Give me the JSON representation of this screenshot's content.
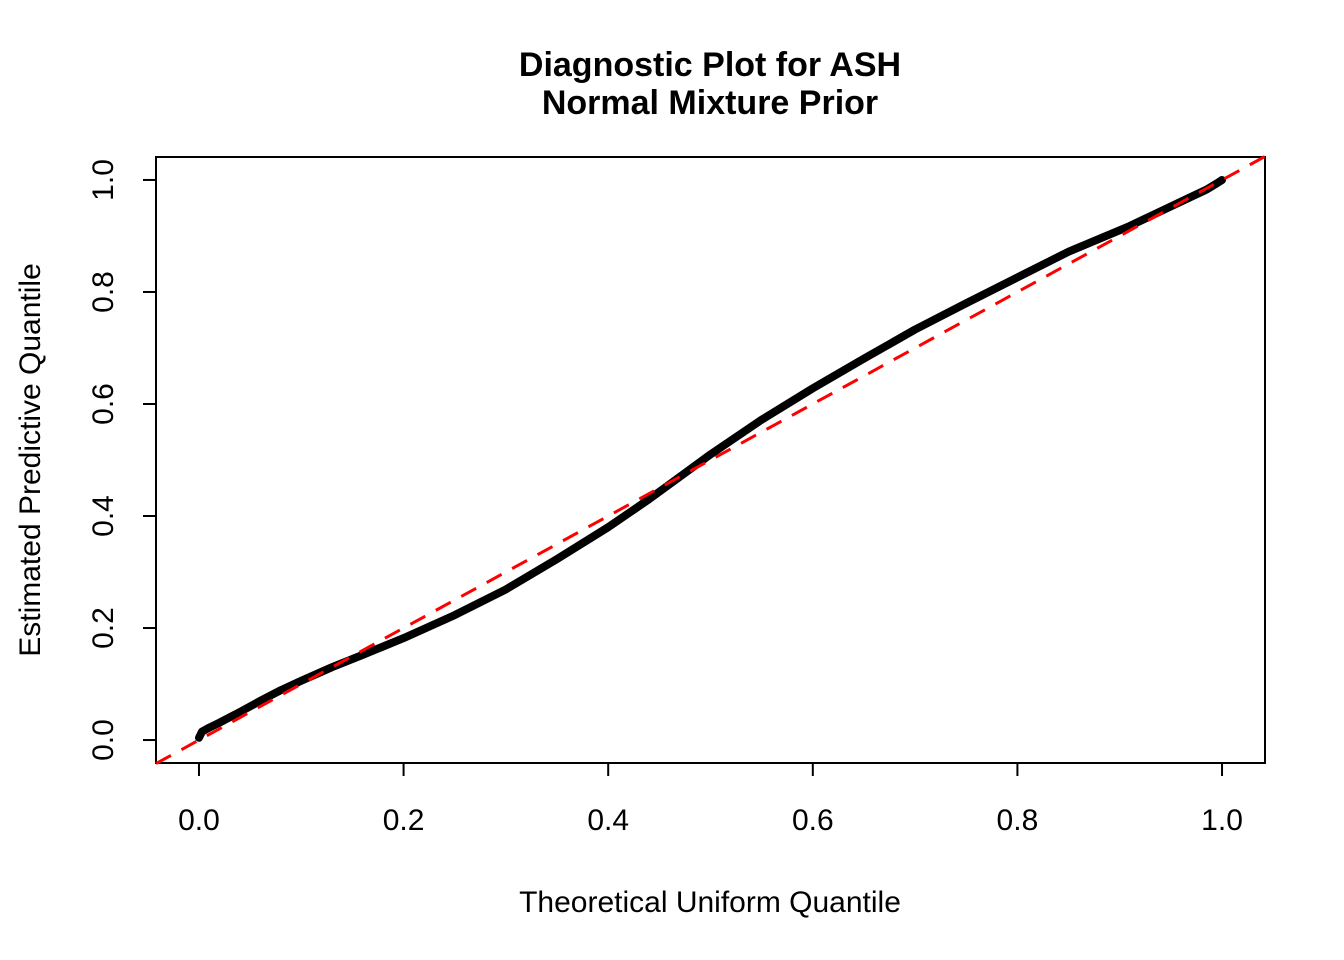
{
  "figure": {
    "title_line1": "Diagnostic Plot for ASH",
    "title_line2": "Normal Mixture Prior"
  },
  "chart_data": {
    "type": "line",
    "title": "Diagnostic Plot for ASH\nNormal Mixture Prior",
    "xlabel": "Theoretical Uniform Quantile",
    "ylabel": "Estimated Predictive Quantile",
    "xlim": [
      -0.042,
      1.042
    ],
    "ylim": [
      -0.041,
      1.041
    ],
    "grid": false,
    "legend": "none",
    "x_ticks": {
      "values": [
        0.0,
        0.2,
        0.4,
        0.6,
        0.8,
        1.0
      ],
      "labels": [
        "0.0",
        "0.2",
        "0.4",
        "0.6",
        "0.8",
        "1.0"
      ]
    },
    "y_ticks": {
      "values": [
        0.0,
        0.2,
        0.4,
        0.6,
        0.8,
        1.0
      ],
      "labels": [
        "0.0",
        "0.2",
        "0.4",
        "0.6",
        "0.8",
        "1.0"
      ]
    },
    "series": [
      {
        "name": "estimated-predictive-quantile-curve",
        "color": "#000000",
        "stroke_width": 8,
        "style": "solid",
        "x": [
          0.0,
          0.003,
          0.01,
          0.02,
          0.04,
          0.06,
          0.08,
          0.1,
          0.13,
          0.16,
          0.2,
          0.25,
          0.3,
          0.35,
          0.4,
          0.44,
          0.47,
          0.5,
          0.55,
          0.6,
          0.65,
          0.7,
          0.75,
          0.8,
          0.85,
          0.88,
          0.91,
          0.94,
          0.97,
          0.985,
          0.995,
          1.0
        ],
        "y": [
          0.004,
          0.015,
          0.022,
          0.031,
          0.05,
          0.07,
          0.089,
          0.106,
          0.13,
          0.152,
          0.182,
          0.223,
          0.269,
          0.323,
          0.38,
          0.43,
          0.47,
          0.51,
          0.572,
          0.628,
          0.681,
          0.733,
          0.78,
          0.826,
          0.872,
          0.895,
          0.918,
          0.944,
          0.97,
          0.983,
          0.994,
          1.0
        ]
      }
    ],
    "reference_line": {
      "name": "identity-diagonal",
      "color": "#FF0000",
      "style": "dashed",
      "stroke_width": 3,
      "from": [
        -0.042,
        -0.042
      ],
      "to": [
        1.042,
        1.042
      ]
    },
    "colors": {
      "curve": "#000000",
      "reference": "#FF0000",
      "axis": "#000000",
      "background": "#FFFFFF"
    }
  }
}
